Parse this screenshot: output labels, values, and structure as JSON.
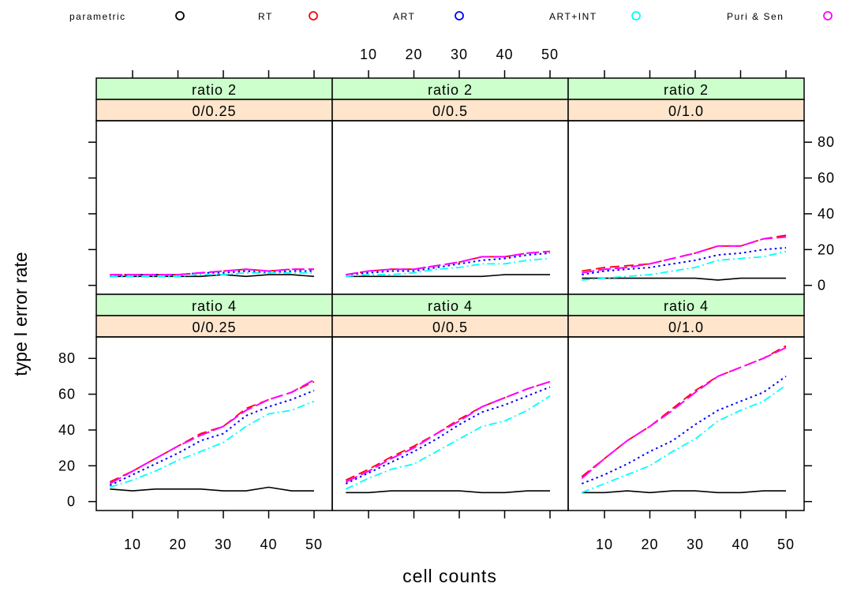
{
  "chart_data": {
    "type": "line",
    "xlabel": "cell counts",
    "ylabel": "type I error rate",
    "xlim": [
      2,
      54
    ],
    "ylim": [
      -5,
      92
    ],
    "x_ticks": [
      10,
      20,
      30,
      40,
      50
    ],
    "y_ticks": [
      0,
      20,
      40,
      60,
      80
    ],
    "legend_position": "top",
    "legend": [
      {
        "name": "parametric",
        "color": "#000000"
      },
      {
        "name": "RT",
        "color": "#ff0000"
      },
      {
        "name": "ART",
        "color": "#0000ff"
      },
      {
        "name": "ART+INT",
        "color": "#00ffff"
      },
      {
        "name": "Puri & Sen",
        "color": "#ff00ff"
      }
    ],
    "x": [
      5,
      10,
      15,
      20,
      25,
      30,
      35,
      40,
      45,
      50
    ],
    "panels": [
      {
        "strip1": "ratio 2",
        "strip2": "0/0.25",
        "row": 0,
        "col": 0,
        "series": [
          {
            "name": "parametric",
            "values": [
              5,
              5,
              5,
              5,
              5,
              6,
              5,
              6,
              6,
              5
            ]
          },
          {
            "name": "RT",
            "values": [
              6,
              6,
              6,
              6,
              7,
              8,
              9,
              8,
              9,
              9
            ]
          },
          {
            "name": "ART",
            "values": [
              5,
              6,
              6,
              6,
              7,
              7,
              8,
              7,
              8,
              8
            ]
          },
          {
            "name": "ART+INT",
            "values": [
              5,
              5,
              5,
              5,
              6,
              6,
              7,
              7,
              7,
              7
            ]
          },
          {
            "name": "Puri & Sen",
            "values": [
              6,
              6,
              6,
              6,
              7,
              8,
              9,
              8,
              9,
              9
            ]
          }
        ]
      },
      {
        "strip1": "ratio 2",
        "strip2": "0/0.5",
        "row": 0,
        "col": 1,
        "series": [
          {
            "name": "parametric",
            "values": [
              5,
              5,
              5,
              5,
              5,
              5,
              5,
              6,
              6,
              6
            ]
          },
          {
            "name": "RT",
            "values": [
              6,
              8,
              9,
              9,
              11,
              13,
              16,
              16,
              18,
              19
            ]
          },
          {
            "name": "ART",
            "values": [
              6,
              7,
              8,
              8,
              10,
              12,
              14,
              15,
              17,
              18
            ]
          },
          {
            "name": "ART+INT",
            "values": [
              5,
              6,
              6,
              7,
              9,
              10,
              12,
              12,
              14,
              15
            ]
          },
          {
            "name": "Puri & Sen",
            "values": [
              6,
              8,
              9,
              9,
              11,
              13,
              16,
              16,
              18,
              19
            ]
          }
        ]
      },
      {
        "strip1": "ratio 2",
        "strip2": "0/1.0",
        "row": 0,
        "col": 2,
        "series": [
          {
            "name": "parametric",
            "values": [
              4,
              4,
              4,
              4,
              4,
              4,
              3,
              4,
              4,
              4
            ]
          },
          {
            "name": "RT",
            "values": [
              8,
              10,
              11,
              12,
              15,
              18,
              22,
              22,
              26,
              28
            ]
          },
          {
            "name": "ART",
            "values": [
              6,
              8,
              9,
              10,
              12,
              14,
              17,
              18,
              20,
              21
            ]
          },
          {
            "name": "ART+INT",
            "values": [
              3,
              4,
              5,
              6,
              8,
              10,
              14,
              15,
              16,
              19
            ]
          },
          {
            "name": "Puri & Sen",
            "values": [
              7,
              9,
              10,
              12,
              15,
              18,
              22,
              22,
              26,
              27
            ]
          }
        ]
      },
      {
        "strip1": "ratio 4",
        "strip2": "0/0.25",
        "row": 1,
        "col": 0,
        "series": [
          {
            "name": "parametric",
            "values": [
              7,
              6,
              7,
              7,
              7,
              6,
              6,
              8,
              6,
              6
            ]
          },
          {
            "name": "RT",
            "values": [
              11,
              17,
              24,
              31,
              38,
              42,
              52,
              57,
              61,
              67
            ]
          },
          {
            "name": "ART",
            "values": [
              9,
              15,
              21,
              27,
              34,
              38,
              48,
              53,
              57,
              62
            ]
          },
          {
            "name": "ART+INT",
            "values": [
              8,
              12,
              17,
              23,
              28,
              33,
              42,
              49,
              51,
              56
            ]
          },
          {
            "name": "Puri & Sen",
            "values": [
              10,
              17,
              24,
              31,
              37,
              42,
              51,
              57,
              61,
              68
            ]
          }
        ]
      },
      {
        "strip1": "ratio 4",
        "strip2": "0/0.5",
        "row": 1,
        "col": 1,
        "series": [
          {
            "name": "parametric",
            "values": [
              5,
              5,
              6,
              6,
              6,
              6,
              5,
              5,
              6,
              6
            ]
          },
          {
            "name": "RT",
            "values": [
              12,
              18,
              25,
              31,
              38,
              46,
              53,
              58,
              63,
              67
            ]
          },
          {
            "name": "ART",
            "values": [
              10,
              16,
              22,
              28,
              35,
              43,
              50,
              54,
              59,
              64
            ]
          },
          {
            "name": "ART+INT",
            "values": [
              7,
              13,
              18,
              21,
              28,
              35,
              42,
              45,
              51,
              59
            ]
          },
          {
            "name": "Puri & Sen",
            "values": [
              11,
              17,
              24,
              30,
              38,
              45,
              53,
              58,
              63,
              67
            ]
          }
        ]
      },
      {
        "strip1": "ratio 4",
        "strip2": "0/1.0",
        "row": 1,
        "col": 2,
        "series": [
          {
            "name": "parametric",
            "values": [
              5,
              5,
              6,
              5,
              6,
              6,
              5,
              5,
              6,
              6
            ]
          },
          {
            "name": "RT",
            "values": [
              14,
              24,
              34,
              42,
              52,
              62,
              70,
              75,
              80,
              87
            ]
          },
          {
            "name": "ART",
            "values": [
              10,
              15,
              21,
              28,
              34,
              43,
              51,
              56,
              61,
              70
            ]
          },
          {
            "name": "ART+INT",
            "values": [
              5,
              10,
              15,
              20,
              28,
              35,
              45,
              51,
              56,
              65
            ]
          },
          {
            "name": "Puri & Sen",
            "values": [
              13,
              24,
              34,
              42,
              51,
              61,
              70,
              75,
              80,
              86
            ]
          }
        ]
      }
    ]
  }
}
